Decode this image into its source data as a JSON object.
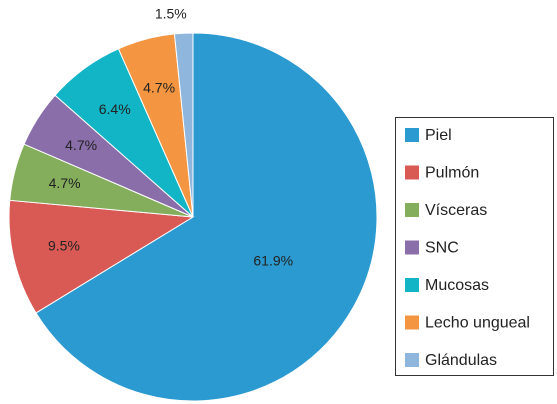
{
  "chart_data": {
    "type": "pie",
    "categories": [
      "Piel",
      "Pulmón",
      "Vísceras",
      "SNC",
      "Mucosas",
      "Lecho ungueal",
      "Glándulas"
    ],
    "values": [
      61.9,
      9.5,
      4.7,
      4.7,
      6.4,
      4.7,
      1.5
    ],
    "value_labels": [
      "61.9%",
      "9.5%",
      "4.7%",
      "4.7%",
      "6.4%",
      "4.7%",
      "1.5%"
    ],
    "colors": [
      "#2b9ad0",
      "#d95a55",
      "#84ad5c",
      "#8a6eaa",
      "#11b5c5",
      "#f39541",
      "#8fb6dc"
    ],
    "legend": "right"
  }
}
